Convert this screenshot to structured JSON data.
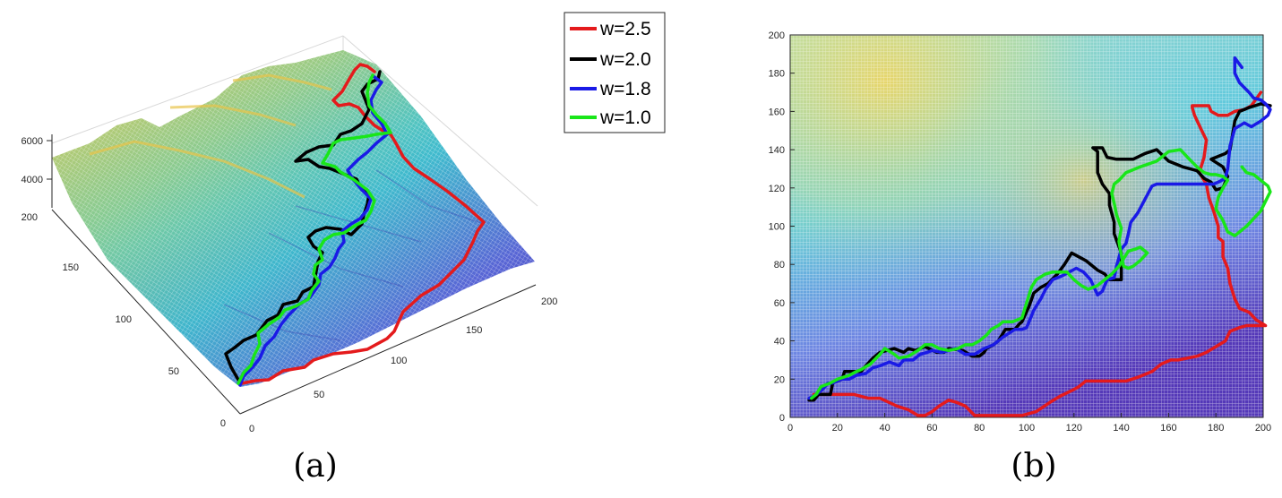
{
  "colors": {
    "path_red": "#e41a1c",
    "path_black": "#000000",
    "path_blue": "#1a1ae6",
    "path_green": "#19e619",
    "terrain_low": "#3b2fa8",
    "terrain_mid": "#2fb7c8",
    "terrain_high": "#f1c93a"
  },
  "legend": {
    "entries": [
      {
        "label": "w=2.5",
        "color": "#e41a1c"
      },
      {
        "label": "w=2.0",
        "color": "#000000"
      },
      {
        "label": "w=1.8",
        "color": "#1a1ae6"
      },
      {
        "label": "w=1.0",
        "color": "#19e619"
      }
    ]
  },
  "chart_data": [
    {
      "panel": "(a)",
      "type": "surface-3d",
      "caption": "(a)",
      "x_ticks": [
        "0",
        "50",
        "100",
        "150",
        "200"
      ],
      "y_ticks": [
        "0",
        "50",
        "100",
        "150",
        "200"
      ],
      "z_ticks": [
        "4000",
        "6000"
      ],
      "xlim": [
        0,
        200
      ],
      "ylim": [
        0,
        200
      ],
      "zlim": [
        2000,
        6500
      ]
    },
    {
      "panel": "(b)",
      "type": "line",
      "caption": "(b)",
      "xlim": [
        0,
        200
      ],
      "ylim": [
        0,
        200
      ],
      "x_ticks": [
        "0",
        "20",
        "40",
        "60",
        "80",
        "100",
        "120",
        "140",
        "160",
        "180",
        "200"
      ],
      "y_ticks": [
        "0",
        "20",
        "40",
        "60",
        "80",
        "100",
        "120",
        "140",
        "160",
        "180",
        "200"
      ],
      "grid": true,
      "series": [
        {
          "name": "w=2.5",
          "color": "#e41a1c",
          "x": [
            10,
            27,
            33,
            38,
            45,
            50,
            54,
            57,
            60,
            63,
            67,
            70,
            74,
            78,
            83,
            90,
            98,
            101,
            104,
            110,
            114,
            119,
            122,
            125,
            130,
            137,
            142,
            147,
            153,
            157,
            161,
            164,
            168,
            172,
            176,
            180,
            184,
            186,
            190,
            193,
            197,
            201,
            197,
            194,
            190,
            188,
            186,
            185,
            183,
            183,
            183,
            181,
            181,
            179,
            177,
            176,
            173,
            175,
            176,
            174,
            171,
            170,
            170,
            172,
            175,
            177,
            178,
            181,
            185,
            188,
            192,
            195,
            199
          ],
          "y": [
            12,
            12,
            10,
            10,
            6,
            4,
            1,
            1,
            3,
            6,
            9,
            8,
            6,
            1,
            1,
            1,
            1,
            2,
            3,
            8,
            11,
            14,
            16,
            19,
            19,
            19,
            19,
            21,
            24,
            28,
            30,
            30,
            31,
            32,
            34,
            37,
            40,
            45,
            47,
            48,
            48,
            48,
            51,
            55,
            57,
            62,
            70,
            78,
            84,
            88,
            92,
            94,
            100,
            108,
            115,
            122,
            128,
            136,
            145,
            150,
            158,
            162,
            163,
            163,
            163,
            163,
            160,
            158,
            158,
            160,
            161,
            163,
            170
          ]
        },
        {
          "name": "w=2.0",
          "color": "#000000",
          "x": [
            8,
            10,
            12,
            17,
            18,
            22,
            23,
            30,
            32,
            35,
            38,
            44,
            48,
            50,
            53,
            57,
            62,
            65,
            67,
            73,
            77,
            80,
            82,
            83,
            86,
            88,
            90,
            91,
            95,
            95,
            97,
            98,
            101,
            103,
            106,
            109,
            113,
            116,
            119,
            125,
            130,
            133,
            135,
            138,
            140,
            140,
            137,
            137,
            135,
            135,
            132,
            130,
            130,
            130,
            128,
            132,
            134,
            138,
            145,
            150,
            155,
            160,
            166,
            172,
            175,
            178,
            180,
            183,
            185,
            183,
            178,
            180,
            184,
            186,
            188,
            190,
            194,
            199,
            203
          ],
          "y": [
            9,
            9,
            12,
            12,
            18,
            20,
            24,
            24,
            27,
            31,
            34,
            36,
            34,
            36,
            35,
            37,
            34,
            34,
            36,
            35,
            32,
            32,
            34,
            36,
            38,
            40,
            44,
            46,
            46,
            46,
            49,
            50,
            58,
            65,
            68,
            70,
            75,
            80,
            86,
            82,
            77,
            75,
            72,
            72,
            72,
            86,
            96,
            102,
            111,
            117,
            122,
            128,
            134,
            139,
            141,
            141,
            136,
            135,
            135,
            138,
            140,
            134,
            131,
            129,
            125,
            123,
            119,
            120,
            126,
            131,
            135,
            136,
            138,
            140,
            155,
            160,
            162,
            164,
            163
          ]
        },
        {
          "name": "w=1.8",
          "color": "#1a1ae6",
          "x": [
            8,
            10,
            14,
            16,
            18,
            22,
            25,
            28,
            32,
            35,
            38,
            42,
            44,
            46,
            48,
            52,
            55,
            58,
            60,
            64,
            67,
            70,
            74,
            78,
            82,
            86,
            90,
            95,
            98,
            100,
            103,
            106,
            108,
            111,
            115,
            118,
            121,
            124,
            127,
            130,
            132,
            134,
            137,
            138,
            140,
            142,
            143,
            144,
            147,
            150,
            153,
            155,
            158,
            163,
            167,
            172,
            176,
            179,
            181,
            184,
            185,
            186,
            188,
            192,
            195,
            199,
            202,
            203,
            201,
            199,
            196,
            194,
            190,
            188,
            188,
            191
          ],
          "y": [
            10,
            11,
            15,
            18,
            18,
            20,
            20,
            22,
            23,
            26,
            27,
            29,
            28,
            27,
            30,
            30,
            33,
            34,
            35,
            34,
            35,
            36,
            33,
            33,
            36,
            38,
            42,
            46,
            46,
            47,
            56,
            62,
            67,
            72,
            74,
            76,
            78,
            76,
            72,
            64,
            66,
            72,
            73,
            79,
            88,
            91,
            96,
            102,
            107,
            114,
            121,
            122,
            122,
            122,
            122,
            122,
            122,
            122,
            123,
            125,
            130,
            142,
            151,
            154,
            152,
            155,
            158,
            161,
            164,
            166,
            167,
            170,
            175,
            180,
            188,
            183
          ]
        },
        {
          "name": "w=1.0",
          "color": "#19e619",
          "x": [
            9,
            11,
            13,
            17,
            20,
            25,
            28,
            30,
            34,
            38,
            40,
            44,
            46,
            50,
            54,
            57,
            60,
            63,
            67,
            71,
            74,
            77,
            80,
            83,
            85,
            88,
            90,
            94,
            98,
            100,
            102,
            104,
            108,
            111,
            114,
            117,
            120,
            123,
            126,
            130,
            133,
            136,
            139,
            141,
            143,
            146,
            148,
            151,
            148,
            145,
            143,
            141,
            140,
            139,
            140,
            138,
            137,
            136,
            137,
            139,
            142,
            148,
            155,
            160,
            165,
            168,
            172,
            175,
            178,
            180,
            183,
            185,
            183,
            181,
            180,
            183,
            185,
            188,
            190,
            193,
            196,
            199,
            201,
            203,
            202,
            199,
            196,
            193,
            191
          ],
          "y": [
            10,
            12,
            16,
            18,
            20,
            22,
            24,
            25,
            28,
            33,
            36,
            33,
            31,
            32,
            35,
            38,
            38,
            36,
            35,
            36,
            38,
            38,
            40,
            43,
            46,
            48,
            50,
            50,
            52,
            60,
            68,
            72,
            75,
            76,
            76,
            76,
            72,
            69,
            67,
            69,
            72,
            75,
            79,
            83,
            87,
            88,
            89,
            86,
            82,
            79,
            78,
            79,
            85,
            92,
            99,
            106,
            112,
            117,
            122,
            124,
            128,
            131,
            134,
            139,
            140,
            136,
            131,
            128,
            127,
            127,
            126,
            124,
            120,
            115,
            109,
            103,
            97,
            95,
            97,
            100,
            104,
            108,
            113,
            118,
            121,
            124,
            127,
            128,
            131
          ]
        }
      ]
    }
  ]
}
